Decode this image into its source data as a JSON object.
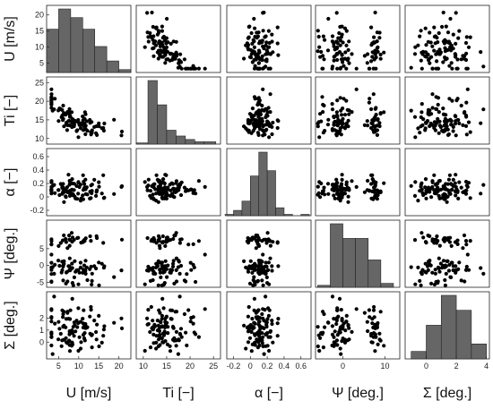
{
  "chart_data": {
    "type": "scatter",
    "title": "",
    "variables": [
      {
        "key": "U",
        "label": "U [m/s]",
        "ylabel": "U [m/s]",
        "range": [
          2,
          23
        ],
        "xticks": [
          "5",
          "10",
          "15",
          "20"
        ],
        "xtick_values": [
          5,
          10,
          15,
          20
        ],
        "yticks": [
          "5",
          "10",
          "15",
          "20"
        ],
        "ytick_values": [
          5,
          10,
          15,
          20
        ]
      },
      {
        "key": "Ti",
        "label": "Ti [−]",
        "ylabel": "Ti [−]",
        "range": [
          8.5,
          26.5
        ],
        "xticks": [
          "10",
          "15",
          "20",
          "25"
        ],
        "xtick_values": [
          10,
          15,
          20,
          25
        ],
        "yticks": [
          "10",
          "15",
          "20",
          "25"
        ],
        "ytick_values": [
          10,
          15,
          20,
          25
        ]
      },
      {
        "key": "alpha",
        "label": "α [−]",
        "ylabel": "α [−]",
        "range": [
          -0.28,
          0.72
        ],
        "xticks": [
          "-0.2",
          "0",
          "0.2",
          "0.4",
          "0.6"
        ],
        "xtick_values": [
          -0.2,
          0,
          0.2,
          0.4,
          0.6
        ],
        "yticks": [
          "-0.2",
          "0",
          "0.2",
          "0.4",
          "0.6"
        ],
        "ytick_values": [
          -0.2,
          0,
          0.2,
          0.4,
          0.6
        ]
      },
      {
        "key": "psi",
        "label": "Ψ [deg.]",
        "ylabel": "Ψ [deg.]",
        "range": [
          -6.5,
          13.5
        ],
        "xticks": [
          "0",
          "10"
        ],
        "xtick_values": [
          0,
          10
        ],
        "yticks": [
          "-5",
          "0",
          "5"
        ],
        "ytick_values": [
          -5,
          0,
          5
        ]
      },
      {
        "key": "sigma",
        "label": "Σ [deg.]",
        "ylabel": "Σ [deg.]",
        "range": [
          -1.4,
          4.2
        ],
        "xticks": [
          "0",
          "2",
          "4"
        ],
        "xtick_values": [
          0,
          2,
          4
        ],
        "yticks": [
          "0",
          "1",
          "2"
        ],
        "ytick_values": [
          0,
          1,
          2
        ]
      }
    ],
    "histograms": [
      {
        "key": "U",
        "bin_edges": [
          2,
          5,
          8,
          11,
          14,
          17,
          20,
          23
        ],
        "counts": [
          15,
          22,
          19,
          15,
          9,
          4,
          1
        ]
      },
      {
        "key": "Ti",
        "bin_edges": [
          8.5,
          11,
          13,
          15,
          17,
          19,
          21,
          23,
          25.5
        ],
        "counts": [
          1,
          55,
          34,
          12,
          7,
          4,
          2,
          2
        ]
      },
      {
        "key": "alpha",
        "bin_edges": [
          -0.3,
          -0.2,
          -0.1,
          0,
          0.1,
          0.2,
          0.3,
          0.4,
          0.5,
          0.6,
          0.7
        ],
        "counts": [
          1,
          4,
          11,
          30,
          48,
          34,
          6,
          1,
          0,
          1
        ]
      },
      {
        "key": "psi",
        "bin_edges": [
          -6,
          -3,
          0,
          3,
          6,
          9,
          12
        ],
        "counts": [
          2,
          65,
          50,
          50,
          28,
          4
        ]
      },
      {
        "key": "sigma",
        "bin_edges": [
          -1,
          0,
          1,
          2,
          3,
          4
        ],
        "counts": [
          2,
          9,
          17,
          13,
          4
        ]
      }
    ],
    "n_samples": 100,
    "grid": false,
    "legend": "none"
  }
}
